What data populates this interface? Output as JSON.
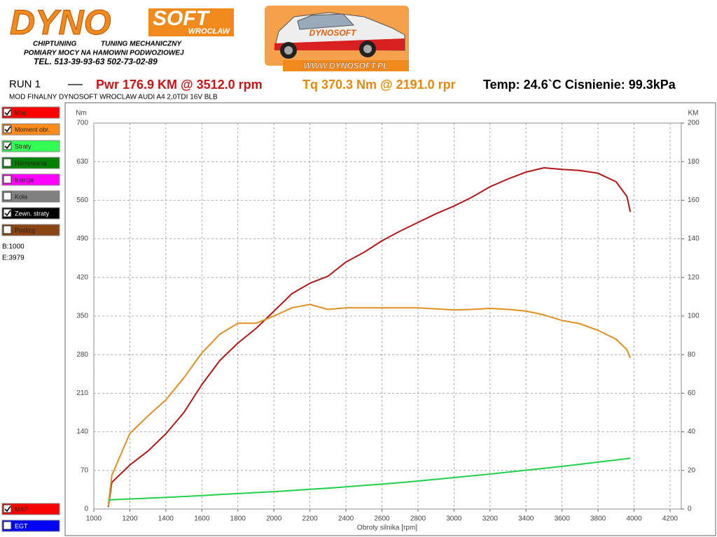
{
  "header": {
    "logo_main": "DYNO",
    "logo_soft": "SOFT",
    "logo_city": "WROCŁAW",
    "line1_left": "CHIPTUNING",
    "line1_right": "TUNING MECHANICZNY",
    "line2": "POMIARY MOCY NA HAMOWNI PODWOZIOWEJ",
    "phone": "TEL. 513-39-93-63   502-73-02-89",
    "car_label": "DYNOSOFT",
    "website": "WWW.DYNOSOFT.PL"
  },
  "run": {
    "name": "RUN 1",
    "power": "Pwr  176.9 KM @ 3512.0 rpm",
    "torque": "Tq 370.3 Nm @ 2191.0 rpr",
    "conditions": "Temp: 24.6`C Cisnienie: 99.3kPa",
    "description": "MOD FINALNY DYNOSOFT WROCLAW AUDI A4 2,0TDI 16V BLB"
  },
  "panel": {
    "options": [
      {
        "label": "Hamowana",
        "color": "#008000",
        "checked": false
      },
      {
        "label": "Inercja",
        "color": "#ff00ff",
        "checked": false
      },
      {
        "label": "Koła",
        "color": "#808080",
        "checked": false
      },
      {
        "label": "Zewn. straty",
        "color": "#000000",
        "checked": true
      },
      {
        "label": "Poślizg",
        "color": "#8b4513",
        "checked": false
      }
    ],
    "begin": "B:1000",
    "end": "E:3979",
    "bottom": [
      {
        "label": "MAP",
        "color": "#ff0000",
        "checked": true
      },
      {
        "label": "EGT",
        "color": "#0000ff",
        "checked": false
      }
    ]
  },
  "chart_data": {
    "type": "line",
    "y_label": "Nm",
    "y2_label": "KM",
    "x_label": "Obroty silnika [rpm]",
    "grid": true,
    "xlim": [
      1000,
      4200
    ],
    "xticks": [
      1000,
      1200,
      1400,
      1600,
      1800,
      2000,
      2200,
      2400,
      2600,
      2800,
      3000,
      3200,
      3400,
      3600,
      3800,
      4000,
      4200
    ],
    "ylim": [
      0,
      700
    ],
    "yticks": [
      0,
      70,
      140,
      210,
      280,
      350,
      420,
      490,
      560,
      630,
      700
    ],
    "y2lim": [
      0,
      200
    ],
    "y2ticks": [
      0,
      20,
      40,
      60,
      80,
      100,
      120,
      140,
      160,
      180,
      200
    ],
    "x": [
      1080,
      1100,
      1200,
      1300,
      1400,
      1500,
      1600,
      1700,
      1800,
      1900,
      2000,
      2100,
      2200,
      2300,
      2400,
      2500,
      2600,
      2700,
      2800,
      2900,
      3000,
      3100,
      3200,
      3300,
      3400,
      3500,
      3600,
      3700,
      3800,
      3900,
      3960,
      3979
    ],
    "series": [
      {
        "name": "Moc",
        "color": "#b01818",
        "legend_color": "#ff0000",
        "checked": true,
        "axis": "y2",
        "values": [
          1,
          13.8,
          22.8,
          30,
          39,
          50,
          64.5,
          77,
          86,
          93.5,
          102.5,
          111.6,
          117,
          120.6,
          128,
          133,
          139,
          144,
          148.5,
          153,
          157,
          161.6,
          167,
          171,
          174.6,
          176.8,
          176,
          175.4,
          174,
          169.6,
          162,
          154
        ]
      },
      {
        "name": "Moment obr.",
        "color": "#e09020",
        "legend_color": "#ff8c1a",
        "checked": true,
        "axis": "y",
        "values": [
          5,
          61,
          137,
          168.6,
          198,
          238,
          283,
          317,
          337,
          337,
          350,
          365,
          371,
          362,
          365,
          365,
          365,
          365,
          365,
          363,
          361,
          362,
          364,
          362,
          359,
          352,
          342,
          336,
          324,
          308,
          289,
          274
        ]
      },
      {
        "name": "Straty",
        "color": "#22d04a",
        "legend_color": "#33ff55",
        "checked": true,
        "axis": "y2",
        "values": [
          4.7,
          4.8,
          5.2,
          5.6,
          6.0,
          6.5,
          7.0,
          7.5,
          8.0,
          8.5,
          9.0,
          9.6,
          10.2,
          10.8,
          11.5,
          12.2,
          12.9,
          13.7,
          14.5,
          15.4,
          16.3,
          17.2,
          18.1,
          19.1,
          20.1,
          21.1,
          22.1,
          23.2,
          24.3,
          25.4,
          26.1,
          26.4
        ]
      }
    ]
  }
}
